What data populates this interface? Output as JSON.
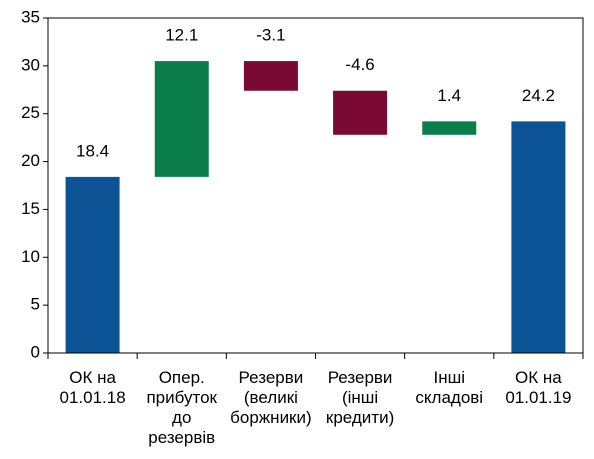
{
  "chart_data": {
    "type": "waterfall",
    "categories": [
      "ОК на 01.01.18",
      "Опер. прибуток до резервів",
      "Резерви (великі боржники)",
      "Резерви (інші кредити)",
      "Інші складові",
      "ОК на 01.01.19"
    ],
    "values": [
      18.4,
      12.1,
      -3.1,
      -4.6,
      1.4,
      24.2
    ],
    "totals": [
      true,
      false,
      false,
      false,
      false,
      true
    ],
    "colors": {
      "total": "#0b5394",
      "increase": "#0a7d4a",
      "decrease": "#7b0a33"
    },
    "ylim": [
      0,
      35
    ],
    "yticks": [
      0,
      5,
      10,
      15,
      20,
      25,
      30,
      35
    ]
  }
}
